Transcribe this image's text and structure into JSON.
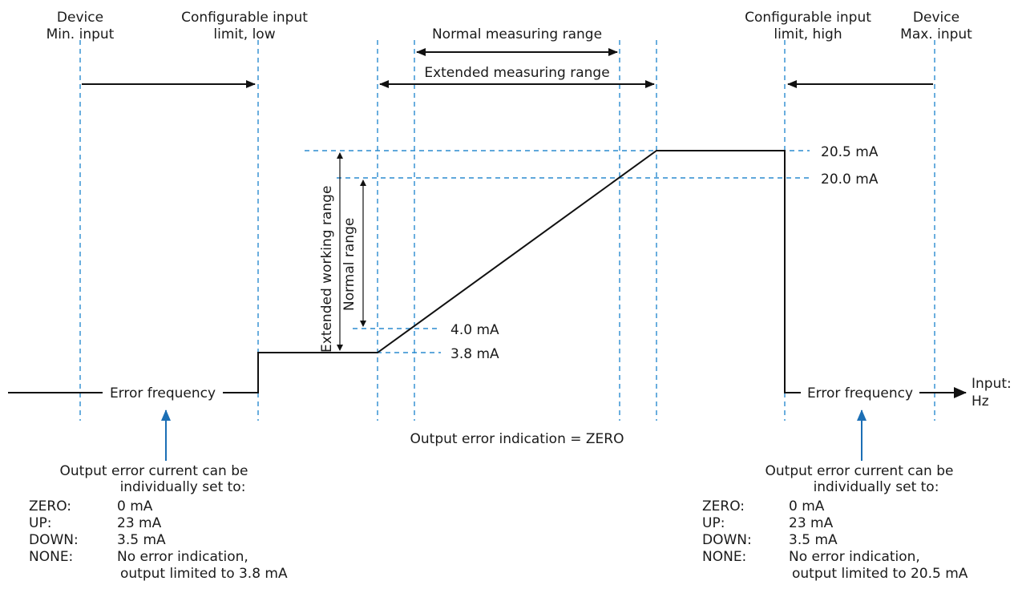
{
  "colors": {
    "guide": "#2b8ccf",
    "pointer": "#1c6fb5",
    "line": "#111111",
    "text": "#1a1a1a"
  },
  "headers": {
    "device_min": [
      "Device",
      "Min. input"
    ],
    "input_low": [
      "Configurable input",
      "limit, low"
    ],
    "input_high": [
      "Configurable input",
      "limit, high"
    ],
    "device_max": [
      "Device",
      "Max. input"
    ]
  },
  "ranges": {
    "normal_measuring": "Normal measuring range",
    "extended_measuring": "Extended measuring range",
    "extended_working": "Extended working range",
    "normal": "Normal range"
  },
  "current_levels": {
    "level_20_5": "20.5 mA",
    "level_20_0": "20.0 mA",
    "level_4_0": "4.0 mA",
    "level_3_8": "3.8 mA"
  },
  "axis": {
    "label_line1": "Input:",
    "label_line2": "Hz"
  },
  "error_frequency_label": "Error frequency",
  "output_error_indication": "Output error indication = ZERO",
  "left_box": {
    "heading": [
      "Output error current can be",
      "individually set to:"
    ],
    "rows": [
      {
        "key": "ZERO:",
        "value": "0 mA"
      },
      {
        "key": "UP:",
        "value": "23 mA"
      },
      {
        "key": "DOWN:",
        "value": "3.5 mA"
      },
      {
        "key": "NONE:",
        "value": "No error indication,"
      }
    ],
    "note": "output limited to 3.8 mA"
  },
  "right_box": {
    "heading": [
      "Output error current can be",
      "individually set to:"
    ],
    "rows": [
      {
        "key": "ZERO:",
        "value": "0 mA"
      },
      {
        "key": "UP:",
        "value": "23 mA"
      },
      {
        "key": "DOWN:",
        "value": "3.5 mA"
      },
      {
        "key": "NONE:",
        "value": "No error indication,"
      }
    ],
    "note": "output limited to 20.5 mA"
  }
}
